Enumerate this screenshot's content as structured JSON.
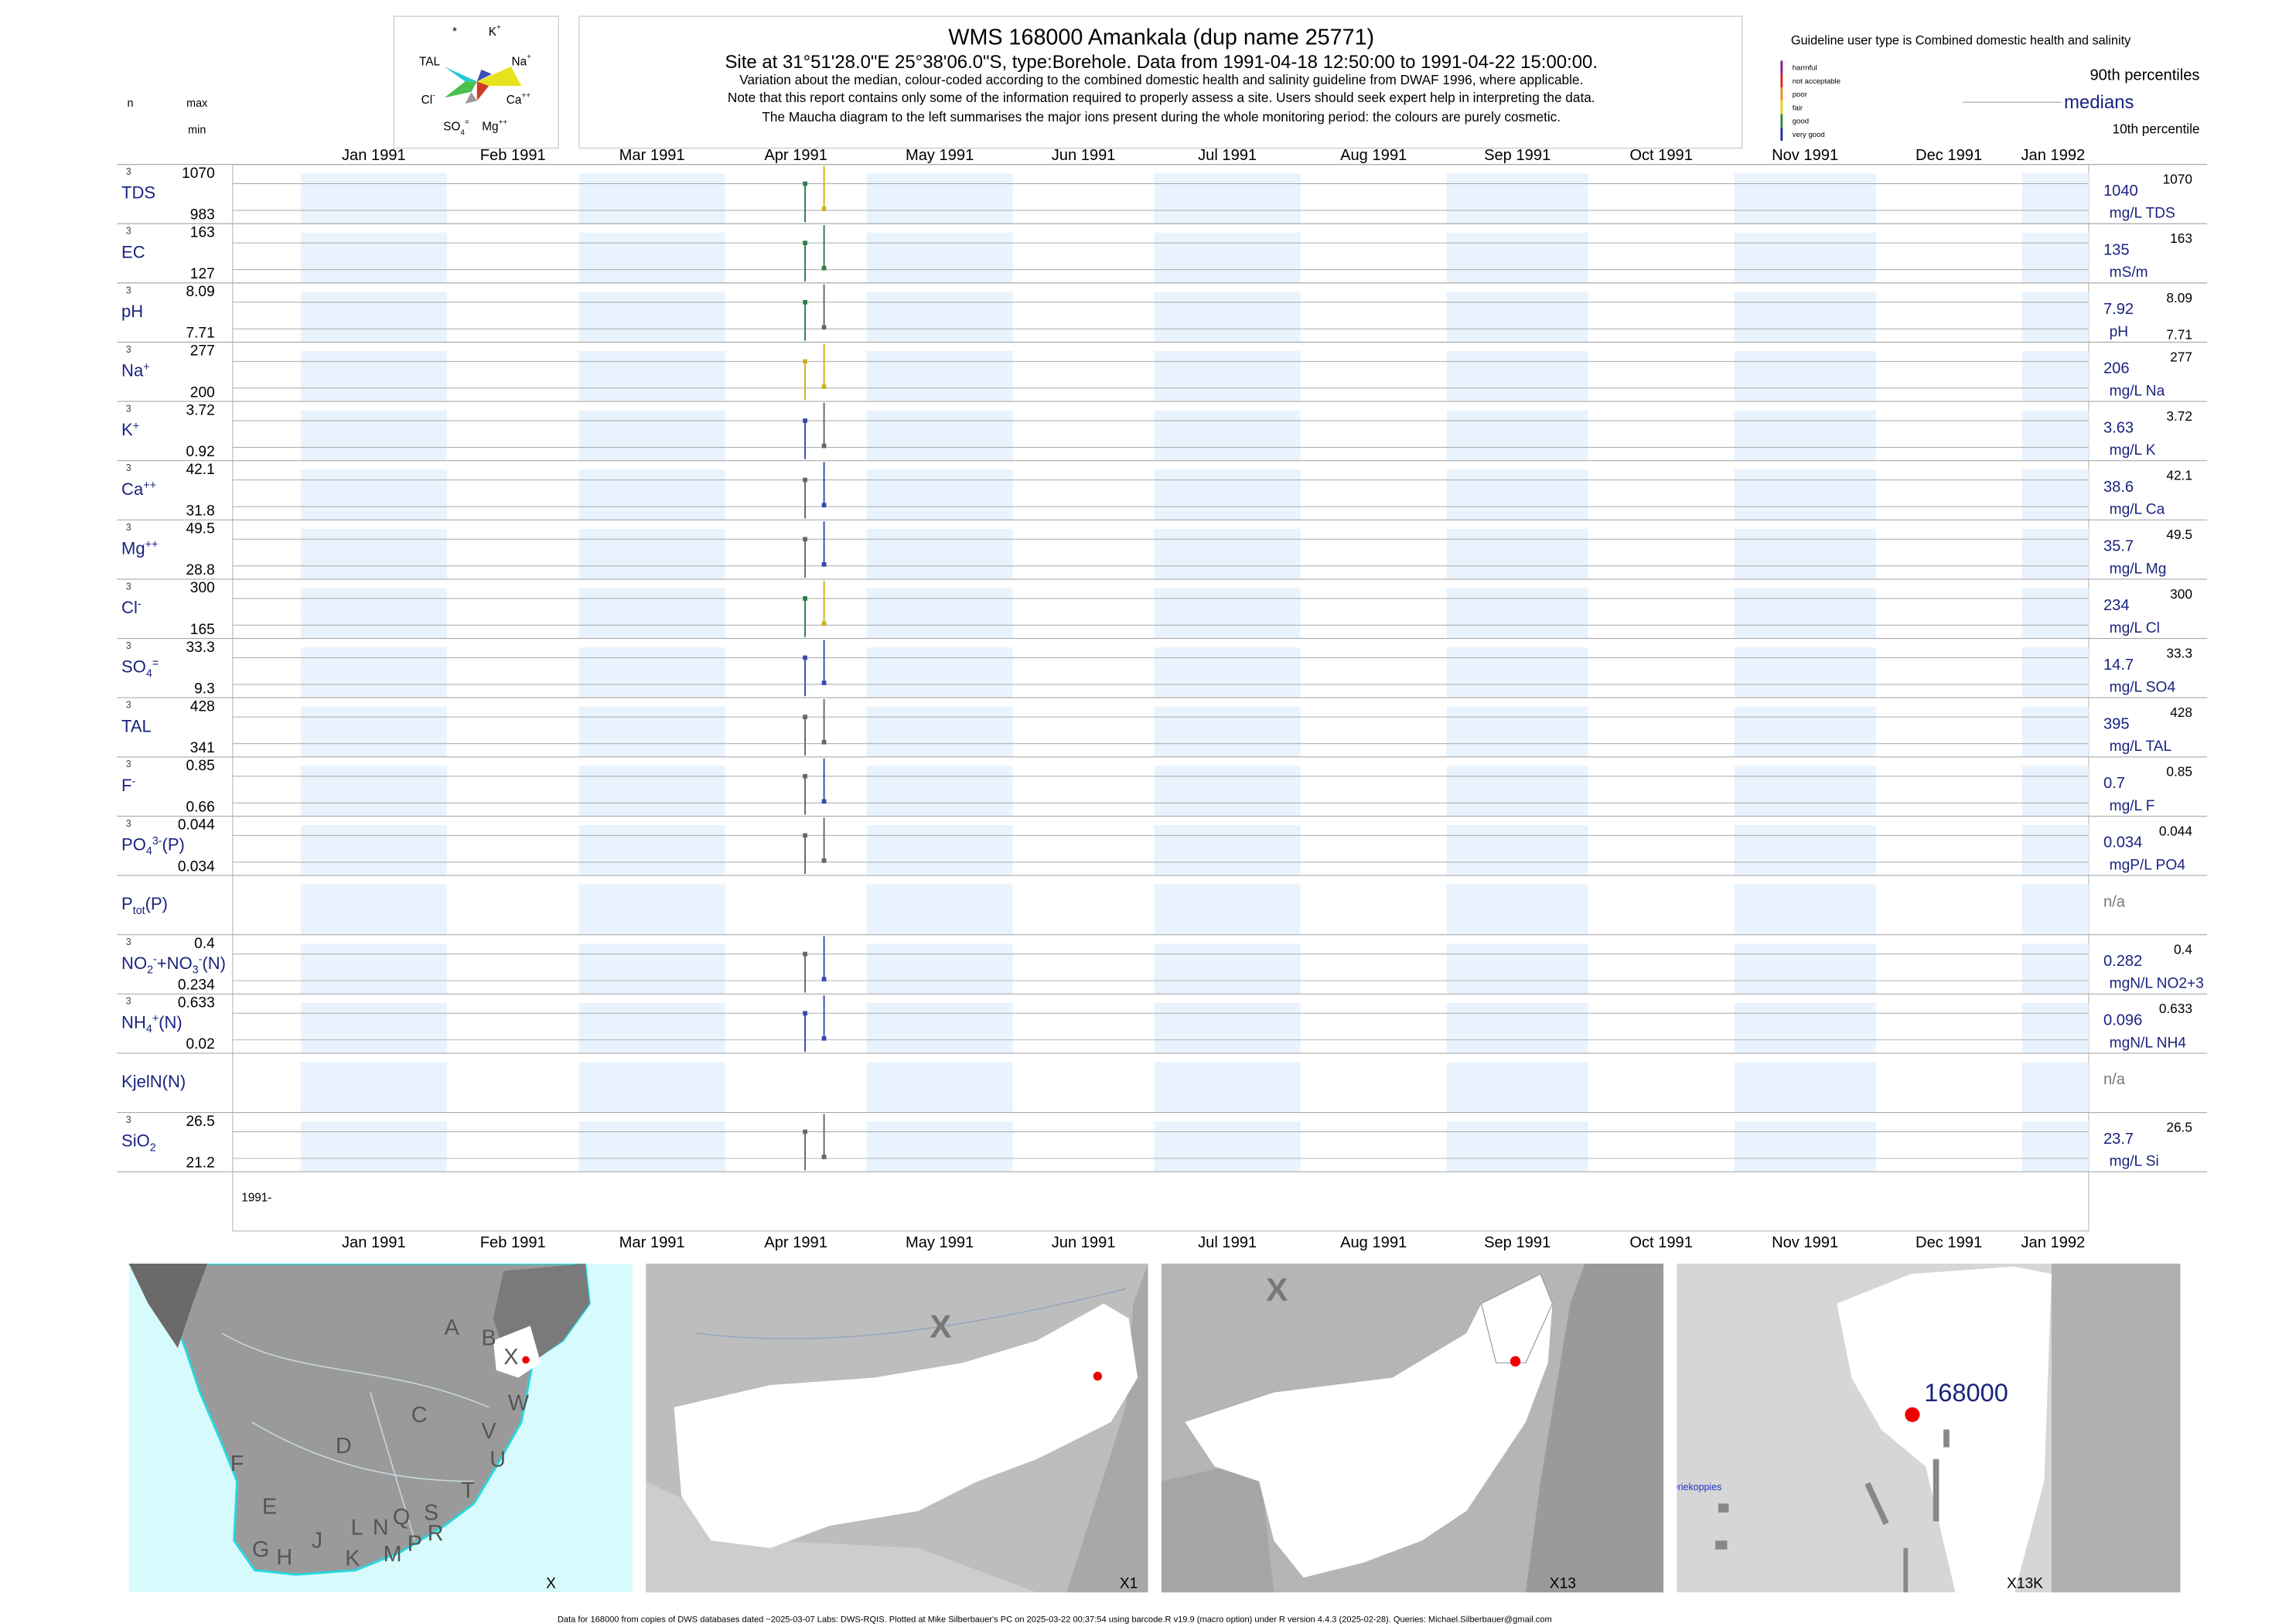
{
  "header": {
    "title": "WMS 168000  Amankala (dup name 25771)",
    "site": "Site at 31°51'28.0\"E 25°38'06.0\"S, type:Borehole.  Data from 1991-04-18 12:50:00 to 1991-04-22 15:00:00.",
    "notes": [
      "Variation about the median,  colour-coded according to the combined domestic health and salinity guideline from DWAF 1996, where applicable.",
      "Note that this report contains only some of the information required to properly assess a site. Users should seek expert help in interpreting the data.",
      "The Maucha diagram to the left summarises the major ions present during the whole monitoring period: the colours are purely cosmetic."
    ],
    "maucha_labels": [
      [
        [
          "*"
        ]
      ],
      [
        [
          "K"
        ],
        [
          "+",
          "sup"
        ]
      ],
      [
        [
          "TAL"
        ]
      ],
      [
        [
          "Na"
        ],
        [
          "+",
          "sup"
        ]
      ],
      [
        [
          "Cl"
        ],
        [
          "-",
          "sup"
        ]
      ],
      [
        [
          "Ca"
        ],
        [
          "++",
          "sup"
        ]
      ],
      [
        [
          "SO"
        ],
        [
          "4",
          "sub"
        ],
        [
          "=",
          "sup"
        ]
      ],
      [
        [
          "Mg"
        ],
        [
          "++",
          "sup"
        ]
      ]
    ],
    "guideline": "Guideline user type is Combined domestic health and salinity",
    "legend": [
      {
        "label": "harmful",
        "color": "#8b1a8b"
      },
      {
        "label": "not acceptable",
        "color": "#e0201b"
      },
      {
        "label": "poor",
        "color": "#f08a1c"
      },
      {
        "label": "fair",
        "color": "#e6d21a"
      },
      {
        "label": "good",
        "color": "#2e8b3a"
      },
      {
        "label": "very good",
        "color": "#1a2aa8"
      }
    ],
    "p90_label": "90th percentiles",
    "median_label": "medians",
    "p10_label": "10th percentile",
    "n_label": "n",
    "max_label": "max",
    "min_label": "min"
  },
  "months": [
    "Jan 1991",
    "Feb 1991",
    "Mar 1991",
    "Apr 1991",
    "May 1991",
    "Jun 1991",
    "Jul 1991",
    "Aug 1991",
    "Sep 1991",
    "Oct 1991",
    "Nov 1991",
    "Dec 1991",
    "Jan 1992"
  ],
  "year_label": "1991-",
  "rows": [
    {
      "label": [
        [
          "TDS"
        ]
      ],
      "n": 3,
      "max": 1070,
      "min": 983,
      "median": 1040,
      "p90": 1070,
      "unit": "mg/L TDS"
    },
    {
      "label": [
        [
          "EC"
        ]
      ],
      "n": 3,
      "max": 163,
      "min": 127,
      "median": 135,
      "p90": 163,
      "unit": "mS/m"
    },
    {
      "label": [
        [
          "pH"
        ]
      ],
      "n": 3,
      "max": 8.09,
      "min": 7.71,
      "median": 7.92,
      "p90": 8.09,
      "unit": "pH",
      "p10": 7.71
    },
    {
      "label": [
        [
          "Na"
        ],
        [
          "+",
          "sup"
        ]
      ],
      "n": 3,
      "max": 277,
      "min": 200,
      "median": 206,
      "p90": 277,
      "unit": "mg/L Na"
    },
    {
      "label": [
        [
          "K"
        ],
        [
          "+",
          "sup"
        ]
      ],
      "n": 3,
      "max": 3.72,
      "min": 0.92,
      "median": 3.63,
      "p90": 3.72,
      "unit": "mg/L K"
    },
    {
      "label": [
        [
          "Ca"
        ],
        [
          "++",
          "sup"
        ]
      ],
      "n": 3,
      "max": 42.1,
      "min": 31.8,
      "median": 38.6,
      "p90": 42.1,
      "unit": "mg/L Ca"
    },
    {
      "label": [
        [
          "Mg"
        ],
        [
          "++",
          "sup"
        ]
      ],
      "n": 3,
      "max": 49.5,
      "min": 28.8,
      "median": 35.7,
      "p90": 49.5,
      "unit": "mg/L Mg"
    },
    {
      "label": [
        [
          "Cl"
        ],
        [
          "-",
          "sup"
        ]
      ],
      "n": 3,
      "max": 300,
      "min": 165,
      "median": 234,
      "p90": 300,
      "unit": "mg/L Cl"
    },
    {
      "label": [
        [
          "SO"
        ],
        [
          "4",
          "sub"
        ],
        [
          "=",
          "sup"
        ]
      ],
      "n": 3,
      "max": 33.3,
      "min": 9.3,
      "median": 14.7,
      "p90": 33.3,
      "unit": "mg/L SO4"
    },
    {
      "label": [
        [
          "TAL"
        ]
      ],
      "n": 3,
      "max": 428,
      "min": 341,
      "median": 395,
      "p90": 428,
      "unit": "mg/L TAL"
    },
    {
      "label": [
        [
          "F"
        ],
        [
          "-",
          "sup"
        ]
      ],
      "n": 3,
      "max": 0.85,
      "min": 0.66,
      "median": 0.7,
      "p90": 0.85,
      "unit": "mg/L F"
    },
    {
      "label": [
        [
          "PO"
        ],
        [
          "4",
          "sub"
        ],
        [
          "3-",
          "sup"
        ],
        [
          "(P)"
        ]
      ],
      "n": 3,
      "max": 0.044,
      "min": 0.034,
      "median": 0.034,
      "p90": 0.044,
      "unit": "mgP/L PO4"
    },
    {
      "label": [
        [
          "P"
        ],
        [
          "tot",
          "sub"
        ],
        [
          "(P)"
        ]
      ],
      "median": "n/a"
    },
    {
      "label": [
        [
          "NO"
        ],
        [
          "2",
          "sub"
        ],
        [
          "-",
          "sup"
        ],
        [
          "+NO"
        ],
        [
          "3",
          "sub"
        ],
        [
          "-",
          "sup"
        ],
        [
          "(N)"
        ]
      ],
      "n": 3,
      "max": 0.4,
      "min": 0.234,
      "median": 0.282,
      "p90": 0.4,
      "unit": "mgN/L NO2+3"
    },
    {
      "label": [
        [
          "NH"
        ],
        [
          "4",
          "sub"
        ],
        [
          "+",
          "sup"
        ],
        [
          "(N)"
        ]
      ],
      "n": 3,
      "max": 0.633,
      "min": 0.02,
      "median": 0.096,
      "p90": 0.633,
      "unit": "mgN/L NH4"
    },
    {
      "label": [
        [
          "KjelN(N)"
        ]
      ],
      "median": "n/a"
    },
    {
      "label": [
        [
          "SiO"
        ],
        [
          "2",
          "sub"
        ]
      ],
      "n": 3,
      "max": 26.5,
      "min": 21.2,
      "median": 23.7,
      "p90": 26.5,
      "unit": "mg/L Si"
    }
  ],
  "maps": [
    {
      "caption": "X",
      "labels": [
        "A",
        "B",
        "X",
        "C",
        "W",
        "D",
        "V",
        "U",
        "F",
        "T",
        "E",
        "G",
        "H",
        "J",
        "K",
        "L",
        "N",
        "Q",
        "S",
        "M",
        "P",
        "R"
      ]
    },
    {
      "caption": "X1",
      "labels": [
        "X"
      ]
    },
    {
      "caption": "X13",
      "labels": [
        "X"
      ]
    },
    {
      "caption": "X13K",
      "labels": [
        "168000",
        "Driekoppies"
      ]
    }
  ],
  "footer": "Data for 168000 from copies of DWS databases dated ~2025-03-07 Labs: DWS-RQIS. Plotted at Mike Silberbauer's PC on 2025-03-22 00:37:54 using barcode.R v19.9 (macro option) under R version 4.4.3 (2025-02-28). Queries: Michael.Silberbauer@gmail.com"
}
